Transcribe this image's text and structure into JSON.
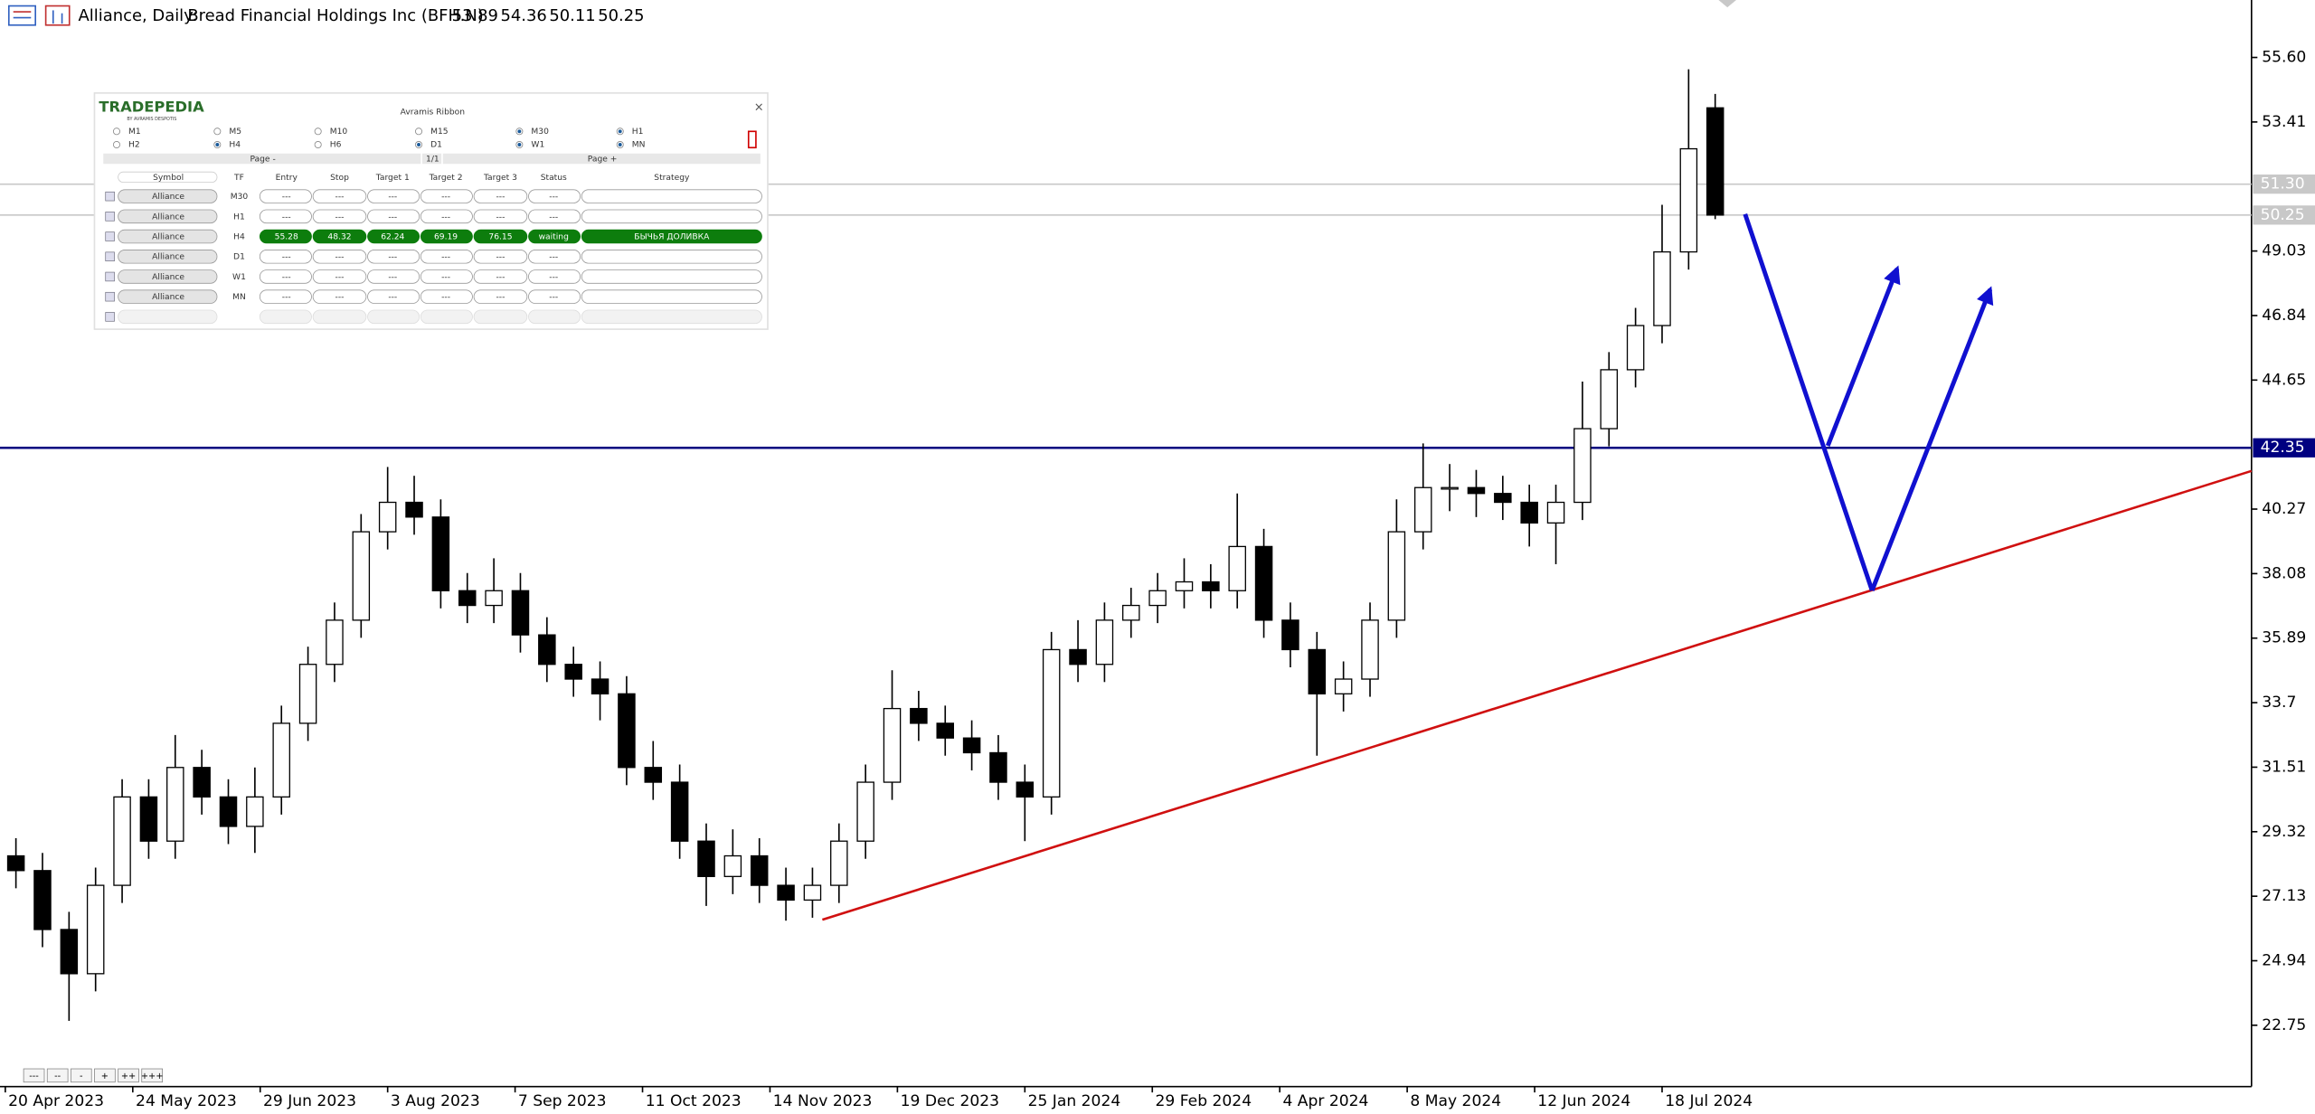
{
  "header": {
    "symbol": "Alliance, Daily:",
    "name": "Bread Financial Holdings Inc (BFH.N)",
    "ohlc": [
      53.89,
      54.36,
      50.11,
      50.25
    ]
  },
  "panel": {
    "logo": "TRADEPEDIA",
    "logo_sub": "BY AVRAMIS DESPOTIS",
    "title": "Avramis Ribbon",
    "close": "×",
    "timeframes": [
      {
        "label": "M1",
        "checked": false
      },
      {
        "label": "M5",
        "checked": false
      },
      {
        "label": "M10",
        "checked": false
      },
      {
        "label": "M15",
        "checked": false
      },
      {
        "label": "M30",
        "checked": true
      },
      {
        "label": "H1",
        "checked": true
      },
      {
        "label": "H2",
        "checked": false
      },
      {
        "label": "H4",
        "checked": true
      },
      {
        "label": "H6",
        "checked": false
      },
      {
        "label": "D1",
        "checked": true
      },
      {
        "label": "W1",
        "checked": true
      },
      {
        "label": "MN",
        "checked": true
      }
    ],
    "pager": [
      "Page -",
      "1/1",
      "Page +"
    ],
    "columns": [
      "Symbol",
      "TF",
      "Entry",
      "Stop",
      "Target 1",
      "Target 2",
      "Target 3",
      "Status",
      "Strategy"
    ],
    "rows": [
      {
        "cells": [
          "Alliance",
          "M30",
          "---",
          "---",
          "---",
          "---",
          "---",
          "---"
        ],
        "active": false
      },
      {
        "cells": [
          "Alliance",
          "H1",
          "---",
          "---",
          "---",
          "---",
          "---",
          "---"
        ],
        "active": false
      },
      {
        "cells": [
          "Alliance",
          "H4",
          55.28,
          48.32,
          62.24,
          69.19,
          76.15,
          "waiting",
          "БЫЧЬЯ ДОЛИВКА"
        ],
        "active": true
      },
      {
        "cells": [
          "Alliance",
          "D1",
          "---",
          "---",
          "---",
          "---",
          "---",
          "---"
        ],
        "active": false
      },
      {
        "cells": [
          "Alliance",
          "W1",
          "---",
          "---",
          "---",
          "---",
          "---",
          "---"
        ],
        "active": false
      },
      {
        "cells": [
          "Alliance",
          "MN",
          "---",
          "---",
          "---",
          "---",
          "---",
          "---"
        ],
        "active": false
      }
    ]
  },
  "toolbar": [
    "---",
    "--",
    "-",
    "+",
    "++",
    "+++"
  ],
  "chart_data": {
    "type": "candlestick",
    "x": [
      2,
      7,
      12,
      17,
      22,
      27,
      32,
      37,
      42,
      47,
      52,
      57,
      62,
      67,
      72,
      77,
      82,
      87,
      92,
      97,
      102,
      107,
      112,
      117,
      122,
      127,
      132,
      137,
      142,
      147,
      152,
      157,
      162,
      167,
      172,
      177,
      182,
      187,
      192,
      197,
      202,
      207,
      212,
      217,
      222,
      227,
      232,
      237,
      242,
      247,
      252,
      257,
      262,
      267,
      272,
      277,
      282,
      287,
      292,
      297,
      302,
      307,
      312,
      317,
      322
    ],
    "open": [
      28.5,
      28.0,
      26.0,
      24.5,
      27.5,
      30.5,
      29.0,
      31.5,
      30.5,
      29.5,
      30.5,
      33.0,
      35.0,
      36.5,
      39.5,
      40.5,
      40.0,
      37.5,
      37.0,
      37.5,
      36.0,
      35.0,
      34.5,
      34.0,
      31.5,
      31.0,
      29.0,
      27.8,
      28.5,
      27.5,
      27.0,
      27.5,
      29.0,
      31.0,
      33.5,
      33.0,
      32.5,
      32.0,
      31.0,
      30.5,
      35.5,
      35.0,
      36.5,
      37.0,
      37.5,
      37.8,
      37.5,
      39.0,
      36.5,
      35.5,
      34.0,
      34.5,
      36.5,
      39.5,
      41.0,
      41.0,
      40.8,
      40.5,
      39.8,
      40.5,
      43.0,
      45.0,
      46.5,
      49.0,
      53.89
    ],
    "high": [
      29.1,
      28.6,
      26.6,
      28.1,
      31.1,
      31.1,
      32.6,
      32.1,
      31.1,
      31.5,
      33.6,
      35.6,
      37.1,
      40.1,
      41.7,
      41.4,
      40.6,
      38.1,
      38.6,
      38.1,
      36.6,
      35.6,
      35.1,
      34.6,
      32.4,
      31.6,
      29.6,
      29.4,
      29.1,
      28.1,
      28.1,
      29.6,
      31.6,
      34.8,
      34.1,
      33.6,
      33.1,
      32.6,
      31.6,
      36.1,
      36.5,
      37.1,
      37.6,
      38.1,
      38.6,
      38.4,
      40.8,
      39.6,
      37.1,
      36.1,
      35.1,
      37.1,
      40.6,
      42.5,
      41.8,
      41.6,
      41.4,
      41.1,
      41.1,
      44.6,
      45.6,
      47.1,
      50.6,
      55.2,
      54.36
    ],
    "low": [
      27.4,
      25.4,
      22.9,
      23.9,
      26.9,
      28.4,
      28.4,
      29.9,
      28.9,
      28.6,
      29.9,
      32.4,
      34.4,
      35.9,
      38.9,
      39.4,
      36.9,
      36.4,
      36.4,
      35.4,
      34.4,
      33.9,
      33.1,
      30.9,
      30.4,
      28.4,
      26.8,
      27.2,
      26.9,
      26.3,
      26.4,
      26.9,
      28.4,
      30.4,
      32.4,
      31.9,
      31.4,
      30.4,
      29.0,
      29.9,
      34.4,
      34.4,
      35.9,
      36.4,
      36.9,
      36.9,
      36.9,
      35.9,
      34.9,
      31.9,
      33.4,
      33.9,
      35.9,
      38.9,
      40.2,
      40.0,
      39.9,
      39.0,
      38.4,
      39.9,
      42.4,
      44.4,
      45.9,
      48.4,
      50.11
    ],
    "close": [
      28.0,
      26.0,
      24.5,
      27.5,
      30.5,
      29.0,
      31.5,
      30.5,
      29.5,
      30.5,
      33.0,
      35.0,
      36.5,
      39.5,
      40.5,
      40.0,
      37.5,
      37.0,
      37.5,
      36.0,
      35.0,
      34.5,
      34.0,
      31.5,
      31.0,
      29.0,
      27.8,
      28.5,
      27.5,
      27.0,
      27.5,
      29.0,
      31.0,
      33.5,
      33.0,
      32.5,
      32.0,
      31.0,
      30.5,
      35.5,
      35.0,
      36.5,
      37.0,
      37.5,
      37.8,
      37.5,
      39.0,
      36.5,
      35.5,
      34.0,
      34.5,
      36.5,
      39.5,
      41.0,
      41.0,
      40.8,
      40.5,
      39.8,
      40.5,
      43.0,
      45.0,
      46.5,
      49.0,
      52.5,
      50.25
    ],
    "up_color": "#ffffff",
    "down_color": "#000000",
    "wick_color": "#000000",
    "xlim": [
      -1,
      423
    ],
    "xticks": [
      {
        "value": 0,
        "label": "20 Apr 2023"
      },
      {
        "value": 24,
        "label": "24 May 2023"
      },
      {
        "value": 48,
        "label": "29 Jun 2023"
      },
      {
        "value": 72,
        "label": "3 Aug 2023"
      },
      {
        "value": 96,
        "label": "7 Sep 2023"
      },
      {
        "value": 120,
        "label": "11 Oct 2023"
      },
      {
        "value": 144,
        "label": "14 Nov 2023"
      },
      {
        "value": 168,
        "label": "19 Dec 2023"
      },
      {
        "value": 192,
        "label": "25 Jan 2024"
      },
      {
        "value": 216,
        "label": "29 Feb 2024"
      },
      {
        "value": 240,
        "label": "4 Apr 2024"
      },
      {
        "value": 264,
        "label": "8 May 2024"
      },
      {
        "value": 288,
        "label": "12 Jun 2024"
      },
      {
        "value": 312,
        "label": "18 Jul 2024"
      }
    ],
    "ylim": [
      20.67,
      57.55
    ],
    "yticks": [
      {
        "value": 55.6,
        "label": "55.60"
      },
      53.41,
      49.03,
      46.84,
      44.65,
      40.27,
      38.08,
      35.89,
      33.7,
      31.51,
      29.32,
      27.13,
      24.94,
      22.75
    ],
    "levels": [
      {
        "value": 51.3,
        "label": "51.30",
        "color": "#c8c8c8"
      },
      {
        "value": 50.25,
        "label": "50.25",
        "color": "#c8c8c8"
      },
      {
        "value": 42.35,
        "label": "42.35",
        "color": "#000080"
      }
    ],
    "grid": false
  }
}
